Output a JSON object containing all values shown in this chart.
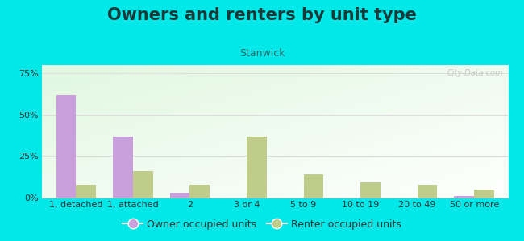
{
  "title": "Owners and renters by unit type",
  "subtitle": "Stanwick",
  "categories": [
    "1, detached",
    "1, attached",
    "2",
    "3 or 4",
    "5 to 9",
    "10 to 19",
    "20 to 49",
    "50 or more"
  ],
  "owner_values": [
    62,
    37,
    3,
    0,
    0,
    0,
    0,
    1
  ],
  "renter_values": [
    8,
    16,
    8,
    37,
    14,
    9,
    8,
    5
  ],
  "owner_color": "#c9a0dc",
  "renter_color": "#bfcc8a",
  "background_color": "#00e8e8",
  "ylabel_ticks": [
    0,
    25,
    50,
    75
  ],
  "ylim": [
    0,
    80
  ],
  "bar_width": 0.35,
  "legend_owner": "Owner occupied units",
  "legend_renter": "Renter occupied units",
  "title_fontsize": 15,
  "subtitle_fontsize": 9,
  "tick_fontsize": 8,
  "legend_fontsize": 9,
  "title_color": "#1a3a3a",
  "subtitle_color": "#2a6a6a",
  "watermark_text": "City-Data.com",
  "grid_color": "#dddddd"
}
